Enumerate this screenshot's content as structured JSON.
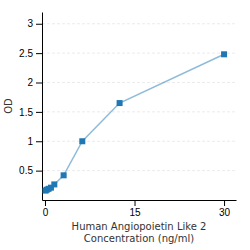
{
  "chart_data": {
    "type": "line",
    "x": [
      0.1,
      0.3,
      0.6,
      1.0,
      1.563,
      3.125,
      6.25,
      12.5,
      30
    ],
    "values": [
      0.16,
      0.175,
      0.19,
      0.21,
      0.265,
      0.42,
      1.0,
      1.65,
      2.48
    ],
    "xlabel": "Human Angiopoietin Like 2\nConcentration (ng/ml)",
    "ylabel": "OD",
    "xlim": [
      -0.5,
      32
    ],
    "ylim": [
      0,
      3.2
    ],
    "xticks": [
      0,
      15,
      30
    ],
    "yticks": [
      0.5,
      1,
      1.5,
      2,
      2.5,
      3
    ],
    "grid": "y",
    "marker": "square"
  }
}
